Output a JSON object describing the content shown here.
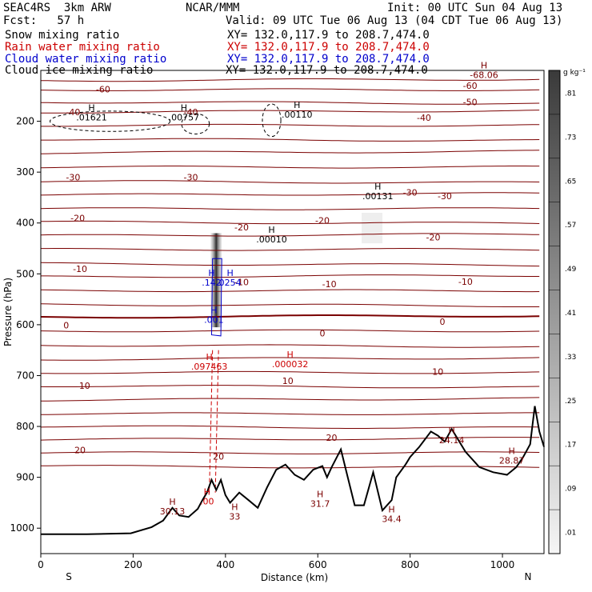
{
  "header": {
    "model": "SEAC4RS  3km ARW",
    "center": "NCAR/MMM",
    "init": "Init: 00 UTC Sun 04 Aug 13",
    "fcst": "Fcst:   57 h",
    "valid": "Valid: 09 UTC Tue 06 Aug 13 (04 CDT Tue 06 Aug 13)"
  },
  "fields": [
    {
      "name": "Snow mixing ratio",
      "xy": "XY= 132.0,117.9 to 208.7,474.0",
      "color": "#000000"
    },
    {
      "name": "Rain water mixing ratio",
      "xy": "XY= 132.0,117.9 to 208.7,474.0",
      "color": "#cc0000"
    },
    {
      "name": "Cloud water mixing ratio",
      "xy": "XY= 132.0,117.9 to 208.7,474.0",
      "color": "#0000cc"
    },
    {
      "name": "Cloud ice mixing ratio",
      "xy": "XY= 132.0,117.9 to 208.7,474.0",
      "color": "#000000"
    }
  ],
  "chart_data": {
    "type": "cross-section",
    "xlabel": "Distance (km)",
    "ylabel": "Pressure (hPa)",
    "xlim": [
      0,
      1090
    ],
    "ylim": [
      1050,
      100
    ],
    "x_ticks": [
      0,
      200,
      400,
      600,
      800,
      1000
    ],
    "y_ticks": [
      200,
      300,
      400,
      500,
      600,
      700,
      800,
      900,
      1000
    ],
    "x_end_labels": {
      "left": "S",
      "right": "N"
    },
    "colorbar": {
      "unit": "g kg⁻¹",
      "ticks": [
        ".01",
        ".09",
        ".17",
        ".25",
        ".33",
        ".41",
        ".49",
        ".57",
        ".65",
        ".73",
        ".81"
      ]
    },
    "temperature_labels": [
      {
        "text": "-60",
        "x": 135,
        "p": 137
      },
      {
        "text": "-60",
        "x": 930,
        "p": 130
      },
      {
        "text": "-50",
        "x": 930,
        "p": 162
      },
      {
        "text": "-40",
        "x": 70,
        "p": 182
      },
      {
        "text": "-40",
        "x": 325,
        "p": 182
      },
      {
        "text": "-40",
        "x": 830,
        "p": 193
      },
      {
        "text": "-30",
        "x": 70,
        "p": 310
      },
      {
        "text": "-30",
        "x": 325,
        "p": 310
      },
      {
        "text": "-30",
        "x": 800,
        "p": 340
      },
      {
        "text": "-30",
        "x": 875,
        "p": 347
      },
      {
        "text": "-20",
        "x": 80,
        "p": 390
      },
      {
        "text": "-20",
        "x": 435,
        "p": 408
      },
      {
        "text": "-20",
        "x": 610,
        "p": 395
      },
      {
        "text": "-20",
        "x": 850,
        "p": 428
      },
      {
        "text": "-10",
        "x": 85,
        "p": 490
      },
      {
        "text": "-10",
        "x": 435,
        "p": 516
      },
      {
        "text": "-10",
        "x": 625,
        "p": 520
      },
      {
        "text": "-10",
        "x": 920,
        "p": 515
      },
      {
        "text": "0",
        "x": 55,
        "p": 601
      },
      {
        "text": "0",
        "x": 610,
        "p": 617
      },
      {
        "text": "0",
        "x": 870,
        "p": 594
      },
      {
        "text": "10",
        "x": 95,
        "p": 720
      },
      {
        "text": "10",
        "x": 535,
        "p": 710
      },
      {
        "text": "10",
        "x": 860,
        "p": 692
      },
      {
        "text": "20",
        "x": 85,
        "p": 846
      },
      {
        "text": "20",
        "x": 385,
        "p": 859
      },
      {
        "text": "20",
        "x": 630,
        "p": 822
      }
    ],
    "maxima": [
      {
        "text": ".01621",
        "x": 110,
        "p": 195,
        "color": "#000000"
      },
      {
        "text": ".00757",
        "x": 310,
        "p": 195,
        "color": "#000000"
      },
      {
        "text": ".00110",
        "x": 555,
        "p": 190,
        "color": "#000000"
      },
      {
        "text": ".00131",
        "x": 730,
        "p": 350,
        "color": "#000000"
      },
      {
        "text": ".00010",
        "x": 500,
        "p": 435,
        "color": "#000000"
      },
      {
        "text": ".142",
        "x": 370,
        "p": 520,
        "color": "#0000cc"
      },
      {
        "text": "0254",
        "x": 410,
        "p": 520,
        "color": "#0000cc"
      },
      {
        "text": ".001",
        "x": 375,
        "p": 593,
        "color": "#0000cc"
      },
      {
        "text": ".097463",
        "x": 365,
        "p": 685,
        "color": "#cc0000"
      },
      {
        "text": ".000032",
        "x": 540,
        "p": 680,
        "color": "#cc0000"
      },
      {
        "text": ".00",
        "x": 360,
        "p": 950,
        "color": "#cc0000"
      },
      {
        "text": "30.13",
        "x": 285,
        "p": 970,
        "color": "#7a0000"
      },
      {
        "text": "33",
        "x": 420,
        "p": 980,
        "color": "#7a0000"
      },
      {
        "text": "31.7",
        "x": 605,
        "p": 955,
        "color": "#7a0000"
      },
      {
        "text": "34.4",
        "x": 760,
        "p": 985,
        "color": "#7a0000"
      },
      {
        "text": "24.14",
        "x": 890,
        "p": 830,
        "color": "#7a0000"
      },
      {
        "text": "28.87",
        "x": 1020,
        "p": 870,
        "color": "#7a0000"
      },
      {
        "text": "-68.06",
        "x": 960,
        "p": 112,
        "color": "#7a0000"
      }
    ],
    "terrain_p": [
      [
        0,
        1012
      ],
      [
        100,
        1012
      ],
      [
        195,
        1010
      ],
      [
        240,
        998
      ],
      [
        265,
        985
      ],
      [
        285,
        960
      ],
      [
        300,
        975
      ],
      [
        320,
        978
      ],
      [
        340,
        962
      ],
      [
        350,
        945
      ],
      [
        360,
        930
      ],
      [
        370,
        905
      ],
      [
        380,
        925
      ],
      [
        390,
        905
      ],
      [
        400,
        935
      ],
      [
        410,
        950
      ],
      [
        430,
        930
      ],
      [
        450,
        945
      ],
      [
        470,
        960
      ],
      [
        490,
        920
      ],
      [
        510,
        885
      ],
      [
        530,
        875
      ],
      [
        550,
        895
      ],
      [
        570,
        905
      ],
      [
        590,
        885
      ],
      [
        610,
        878
      ],
      [
        620,
        900
      ],
      [
        630,
        880
      ],
      [
        650,
        845
      ],
      [
        665,
        900
      ],
      [
        680,
        955
      ],
      [
        700,
        955
      ],
      [
        720,
        890
      ],
      [
        740,
        965
      ],
      [
        760,
        945
      ],
      [
        770,
        900
      ],
      [
        790,
        875
      ],
      [
        800,
        860
      ],
      [
        820,
        840
      ],
      [
        845,
        810
      ],
      [
        860,
        818
      ],
      [
        875,
        830
      ],
      [
        890,
        805
      ],
      [
        920,
        850
      ],
      [
        950,
        880
      ],
      [
        980,
        890
      ],
      [
        1010,
        895
      ],
      [
        1030,
        880
      ],
      [
        1045,
        860
      ],
      [
        1060,
        835
      ],
      [
        1070,
        760
      ],
      [
        1080,
        810
      ],
      [
        1090,
        840
      ]
    ]
  }
}
